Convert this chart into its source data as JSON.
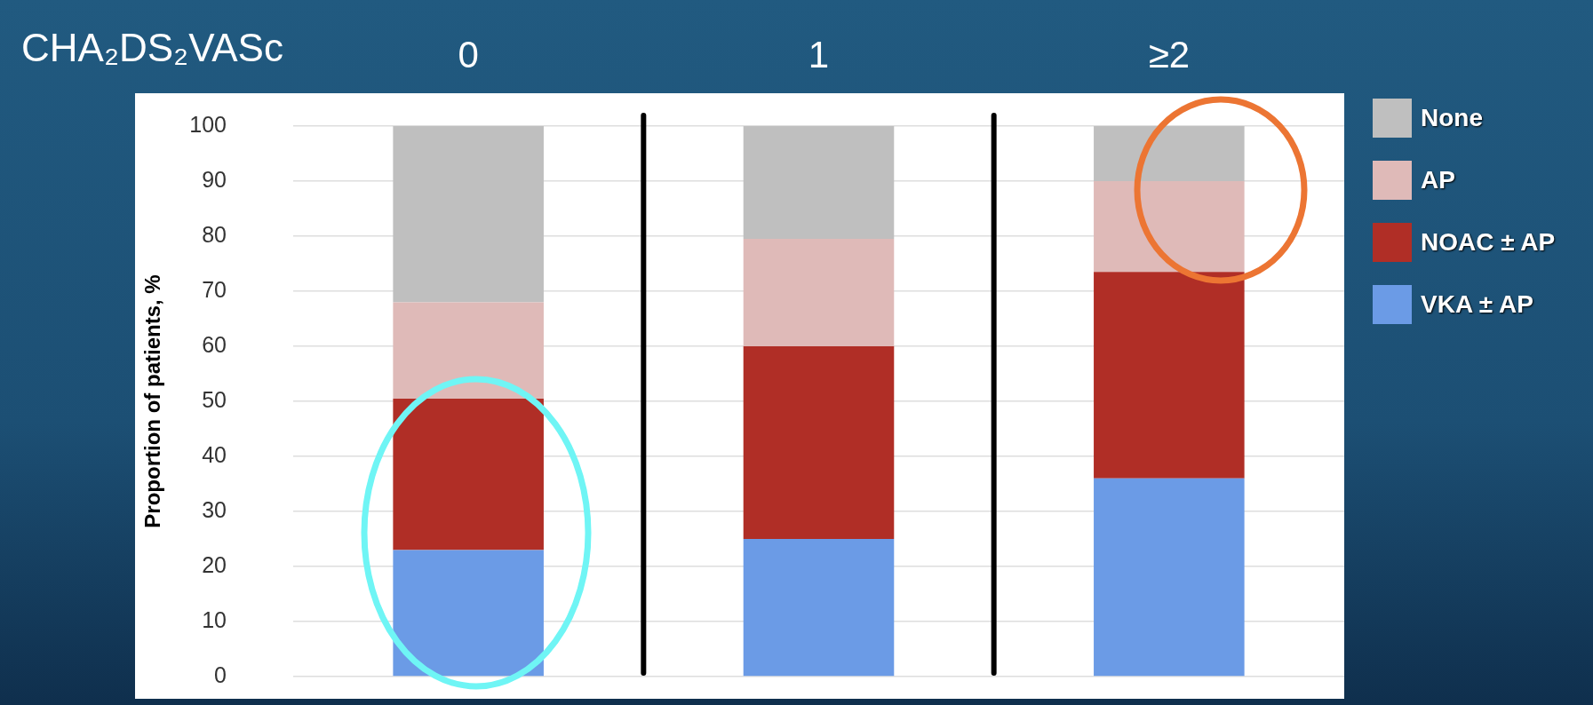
{
  "chart_data": {
    "type": "bar",
    "title": "CHA₂DS₂VASc",
    "ylabel": "Proportion of patients, %",
    "categories": [
      "0",
      "1",
      "≥2"
    ],
    "series": [
      {
        "name": "VKA ± AP",
        "color": "#6b9be6",
        "values": [
          23,
          25,
          36
        ]
      },
      {
        "name": "NOAC ± AP",
        "color": "#b02e26",
        "values": [
          27.5,
          35,
          37.5
        ]
      },
      {
        "name": "AP",
        "color": "#dfbab8",
        "values": [
          17.5,
          19.5,
          16.5
        ]
      },
      {
        "name": "None",
        "color": "#bfbfbf",
        "values": [
          32,
          20.5,
          10
        ]
      }
    ],
    "stacked": true,
    "ylim": [
      0,
      100
    ],
    "yticks": [
      0,
      10,
      20,
      30,
      40,
      50,
      60,
      70,
      80,
      90,
      100
    ],
    "grid": "y",
    "legend": "right"
  }
}
